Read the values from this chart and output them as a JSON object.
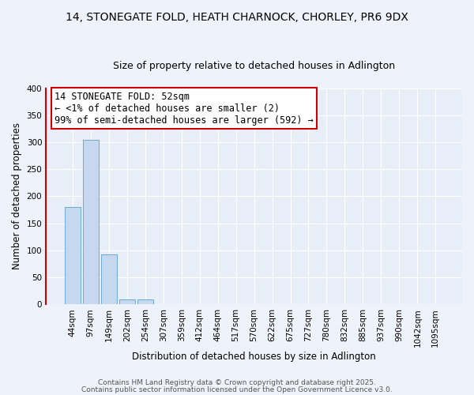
{
  "title": "14, STONEGATE FOLD, HEATH CHARNOCK, CHORLEY, PR6 9DX",
  "subtitle": "Size of property relative to detached houses in Adlington",
  "xlabel": "Distribution of detached houses by size in Adlington",
  "ylabel": "Number of detached properties",
  "bar_values": [
    180,
    305,
    93,
    9,
    9,
    0,
    0,
    0,
    0,
    0,
    1,
    0,
    0,
    0,
    0,
    0,
    0,
    0,
    0,
    1,
    0
  ],
  "bin_labels": [
    "44sqm",
    "97sqm",
    "149sqm",
    "202sqm",
    "254sqm",
    "307sqm",
    "359sqm",
    "412sqm",
    "464sqm",
    "517sqm",
    "570sqm",
    "622sqm",
    "675sqm",
    "727sqm",
    "780sqm",
    "832sqm",
    "885sqm",
    "937sqm",
    "990sqm",
    "1042sqm",
    "1095sqm"
  ],
  "bar_color": "#c5d8ef",
  "bar_edge_color": "#6aaad4",
  "ylim": [
    0,
    400
  ],
  "yticks": [
    0,
    50,
    100,
    150,
    200,
    250,
    300,
    350,
    400
  ],
  "annotation_line1": "14 STONEGATE FOLD: 52sqm",
  "annotation_line2": "← <1% of detached houses are smaller (2)",
  "annotation_line3": "99% of semi-detached houses are larger (592) →",
  "annotation_box_color": "#ffffff",
  "annotation_box_edge_color": "#cc0000",
  "background_color": "#eef2fa",
  "plot_bg_color": "#e8eef8",
  "grid_color": "#ffffff",
  "red_line_color": "#cc0000",
  "footer_line1": "Contains HM Land Registry data © Crown copyright and database right 2025.",
  "footer_line2": "Contains public sector information licensed under the Open Government Licence v3.0.",
  "title_fontsize": 10,
  "subtitle_fontsize": 9,
  "xlabel_fontsize": 8.5,
  "ylabel_fontsize": 8.5,
  "tick_fontsize": 7.5,
  "annotation_fontsize": 8.5,
  "footer_fontsize": 6.5
}
